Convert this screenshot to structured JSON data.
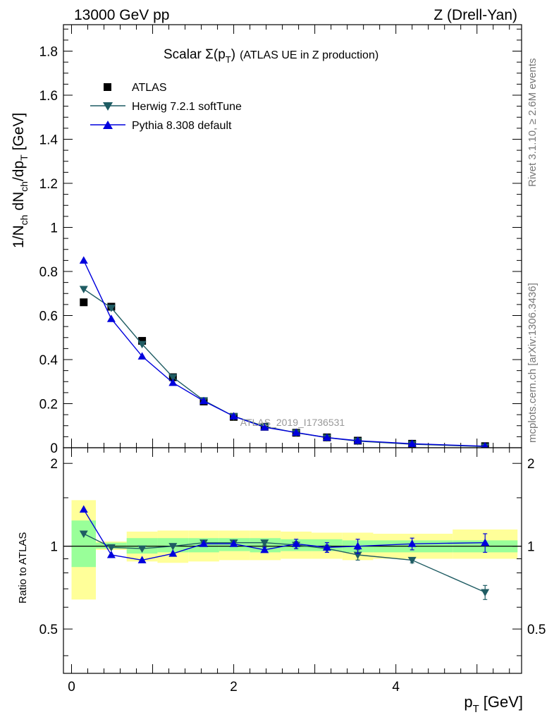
{
  "header": {
    "left": "13000 GeV pp",
    "right": "Z (Drell-Yan)"
  },
  "side_text": {
    "rivet": "Rivet 3.1.10, ≥ 2.6M events",
    "mcplots": "mcplots.cern.ch [arXiv:1306.3436]"
  },
  "watermark": "ATLAS_2019_I1736531",
  "chart_data": [
    {
      "type": "line",
      "title_main": "Scalar Σ(p",
      "title_sub": "T",
      "title_close": ")",
      "title_rest": "(ATLAS UE in Z production)",
      "ylabel": "1/N",
      "ylabel_parts": [
        "1/N",
        "ch",
        " dN",
        "ch",
        "/dp",
        "T",
        " [GeV]"
      ],
      "xlabel": "p",
      "xlabel_sub": "T",
      "xlabel_unit": "[GeV]",
      "xlim": [
        -0.1,
        5.55
      ],
      "ylim": [
        0,
        1.92
      ],
      "x_ticks": [
        0,
        2,
        4
      ],
      "y_ticks": [
        0,
        0.2,
        0.4,
        0.6,
        0.8,
        1,
        1.2,
        1.4,
        1.6,
        1.8
      ],
      "y_tick_labels": [
        "0",
        "0.2",
        "0.4",
        "0.6",
        "0.8",
        "1",
        "1.2",
        "1.4",
        "1.6",
        "1.8"
      ],
      "legend_position": "top-left",
      "x": [
        0.15,
        0.49,
        0.87,
        1.25,
        1.63,
        2.0,
        2.38,
        2.77,
        3.15,
        3.53,
        4.2,
        5.1
      ],
      "series": [
        {
          "name": "ATLAS",
          "marker": "square",
          "color": "#000000",
          "values": [
            0.66,
            0.64,
            0.485,
            0.32,
            0.21,
            0.14,
            0.095,
            0.068,
            0.047,
            0.032,
            0.018,
            0.007
          ]
        },
        {
          "name": "Herwig 7.2.1 softTune",
          "marker": "triangle-down",
          "color": "#1f5c63",
          "values": [
            0.72,
            0.635,
            0.47,
            0.32,
            0.215,
            0.143,
            0.097,
            0.068,
            0.046,
            0.03,
            0.016,
            0.005
          ]
        },
        {
          "name": "Pythia 8.308 default",
          "marker": "triangle-up",
          "color": "#0000dd",
          "values": [
            0.85,
            0.585,
            0.415,
            0.295,
            0.212,
            0.143,
            0.093,
            0.069,
            0.046,
            0.032,
            0.018,
            0.007
          ]
        }
      ]
    },
    {
      "type": "line",
      "ylabel": "Ratio to ATLAS",
      "xlim": [
        -0.1,
        5.55
      ],
      "ylim": [
        0.345,
        2.28
      ],
      "y_ticks": [
        0.5,
        1,
        2
      ],
      "y_tick_labels": [
        "0.5",
        "1",
        "2"
      ],
      "x_ticks": [
        0,
        2,
        4
      ],
      "x_tick_labels": [
        "0",
        "2",
        "4"
      ],
      "x": [
        0.15,
        0.49,
        0.87,
        1.25,
        1.63,
        2.0,
        2.38,
        2.77,
        3.15,
        3.53,
        4.2,
        5.1
      ],
      "bins": [
        [
          0.0,
          0.3
        ],
        [
          0.3,
          0.68
        ],
        [
          0.68,
          1.06
        ],
        [
          1.06,
          1.44
        ],
        [
          1.44,
          1.82
        ],
        [
          1.82,
          2.2
        ],
        [
          2.2,
          2.58
        ],
        [
          2.58,
          2.96
        ],
        [
          2.96,
          3.34
        ],
        [
          3.34,
          3.72
        ],
        [
          3.72,
          4.7
        ],
        [
          4.7,
          5.5
        ]
      ],
      "band_inner": [
        [
          0.84,
          1.24
        ],
        [
          0.98,
          1.03
        ],
        [
          0.94,
          1.07
        ],
        [
          0.95,
          1.07
        ],
        [
          0.95,
          1.07
        ],
        [
          0.96,
          1.07
        ],
        [
          0.95,
          1.07
        ],
        [
          0.96,
          1.06
        ],
        [
          0.96,
          1.06
        ],
        [
          0.95,
          1.05
        ],
        [
          0.95,
          1.05
        ],
        [
          0.95,
          1.05
        ]
      ],
      "band_outer": [
        [
          0.64,
          1.47
        ],
        [
          0.97,
          1.04
        ],
        [
          0.88,
          1.13
        ],
        [
          0.87,
          1.14
        ],
        [
          0.88,
          1.14
        ],
        [
          0.89,
          1.14
        ],
        [
          0.89,
          1.14
        ],
        [
          0.9,
          1.13
        ],
        [
          0.9,
          1.12
        ],
        [
          0.89,
          1.12
        ],
        [
          0.9,
          1.11
        ],
        [
          0.9,
          1.15
        ]
      ],
      "series": [
        {
          "name": "Herwig 7.2.1 softTune",
          "marker": "triangle-down",
          "color": "#1f5c63",
          "values": [
            1.11,
            0.99,
            0.98,
            1.0,
            1.03,
            1.03,
            1.03,
            1.01,
            0.98,
            0.93,
            0.89,
            0.68
          ],
          "errors": [
            0.01,
            0.01,
            0.01,
            0.01,
            0.01,
            0.01,
            0.02,
            0.03,
            0.03,
            0.04,
            0.02,
            0.04
          ]
        },
        {
          "name": "Pythia 8.308 default",
          "marker": "triangle-up",
          "color": "#0000dd",
          "values": [
            1.36,
            0.93,
            0.89,
            0.94,
            1.02,
            1.02,
            0.97,
            1.02,
            0.99,
            1.0,
            1.02,
            1.03
          ],
          "errors": [
            0.01,
            0.01,
            0.01,
            0.01,
            0.01,
            0.01,
            0.02,
            0.04,
            0.04,
            0.06,
            0.05,
            0.08
          ]
        }
      ]
    }
  ],
  "colors": {
    "band_inner": "#99ff99",
    "band_outer": "#ffff99"
  }
}
